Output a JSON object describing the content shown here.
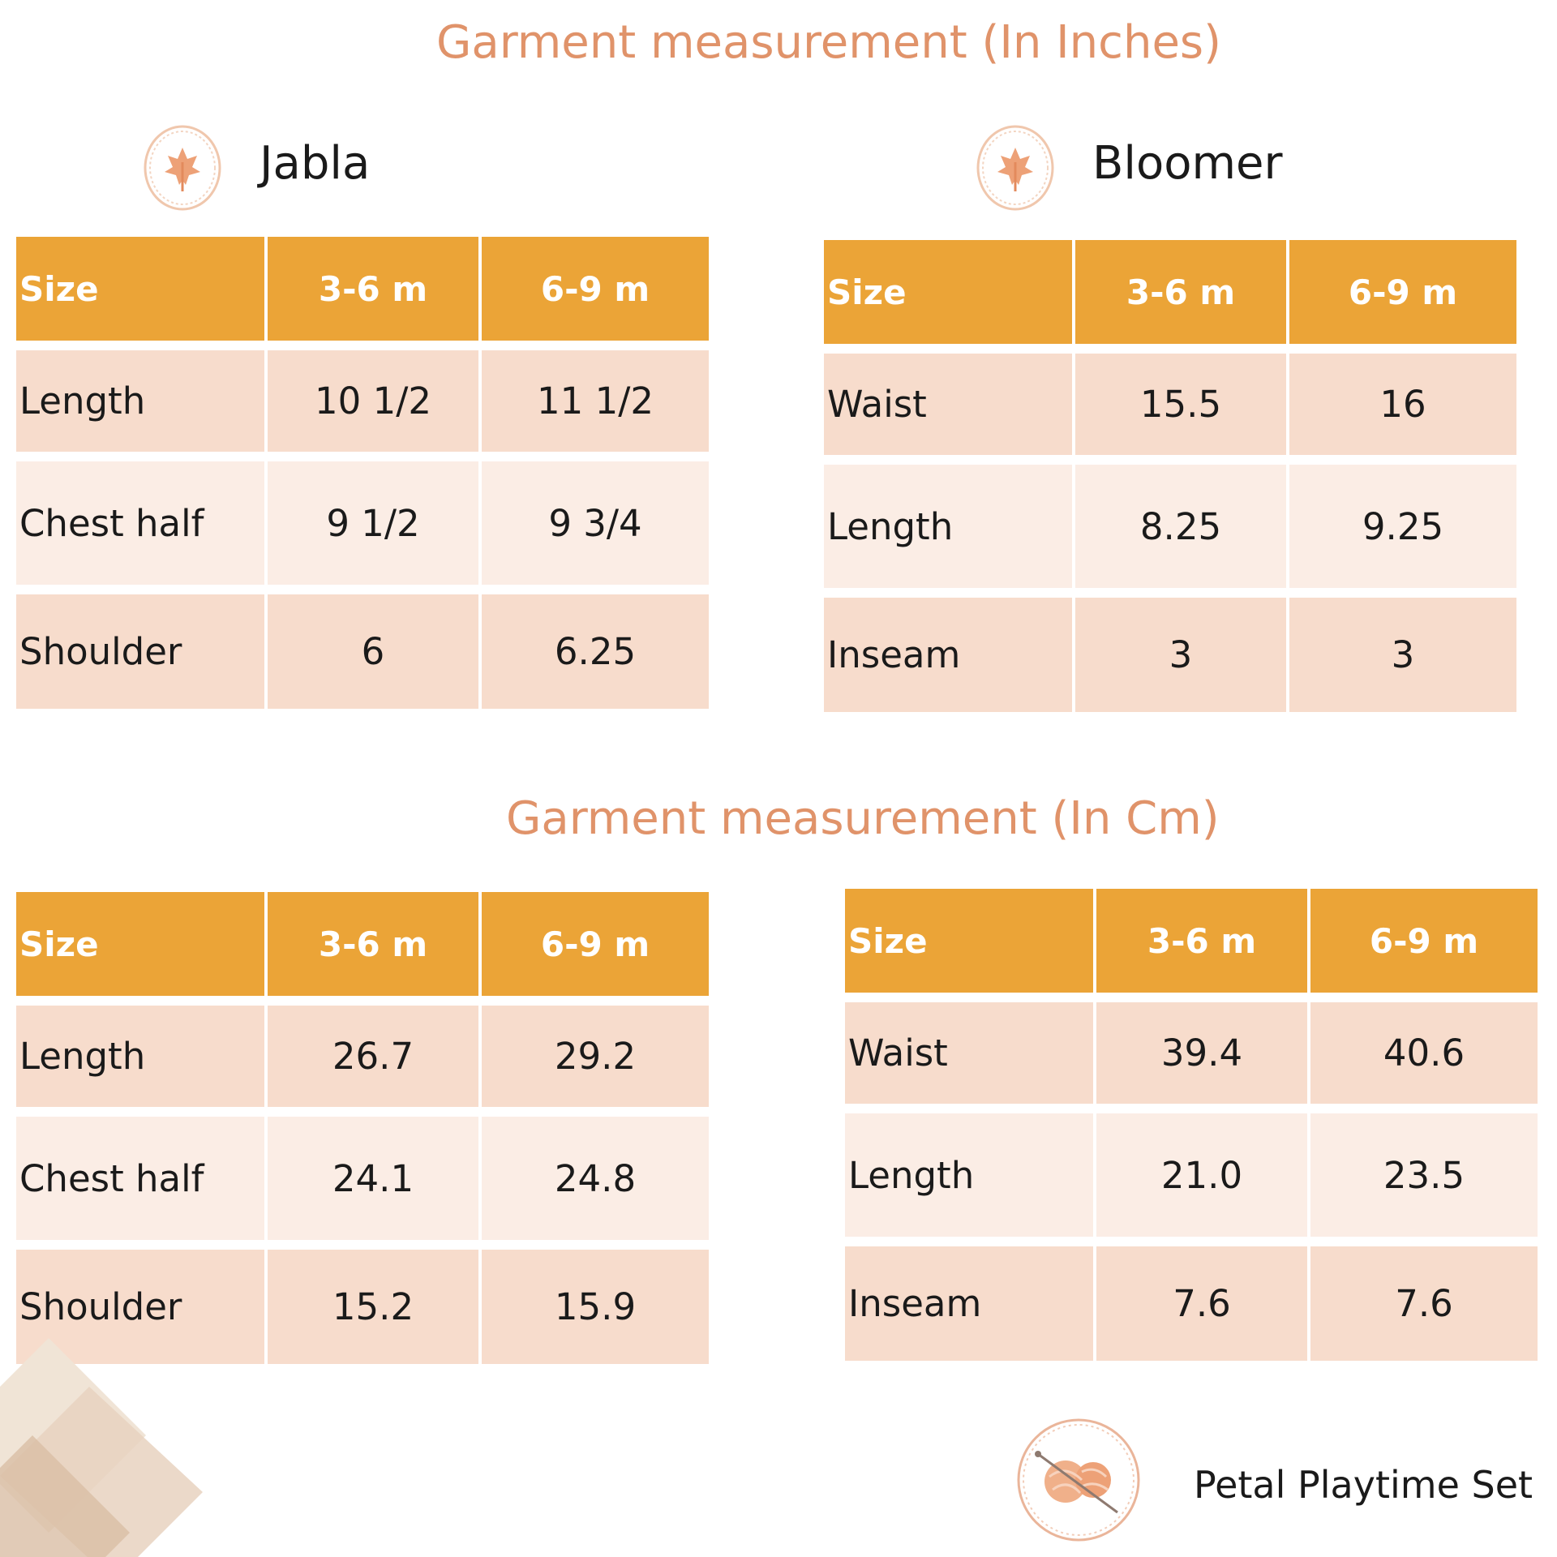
{
  "headings": {
    "inches": "Garment measurement (In Inches)",
    "cm": "Garment measurement (In Cm)"
  },
  "garments": {
    "jabla": "Jabla",
    "bloomer": "Bloomer"
  },
  "columns": [
    "Size",
    "3-6 m",
    "6-9 m"
  ],
  "tables": {
    "jabla_in": [
      [
        "Length",
        "10 1/2",
        "11 1/2"
      ],
      [
        "Chest half",
        "9 1/2",
        "9 3/4"
      ],
      [
        "Shoulder",
        "6",
        "6.25"
      ]
    ],
    "bloomer_in": [
      [
        "Waist",
        "15.5",
        "16"
      ],
      [
        "Length",
        "8.25",
        "9.25"
      ],
      [
        "Inseam",
        "3",
        "3"
      ]
    ],
    "jabla_cm": [
      [
        "Length",
        "26.7",
        "29.2"
      ],
      [
        "Chest half",
        "24.1",
        "24.8"
      ],
      [
        "Shoulder",
        "15.2",
        "15.9"
      ]
    ],
    "bloomer_cm": [
      [
        "Waist",
        "39.4",
        "40.6"
      ],
      [
        "Length",
        "21.0",
        "23.5"
      ],
      [
        "Inseam",
        "7.6",
        "7.6"
      ]
    ]
  },
  "footer": {
    "product_name": "Petal Playtime Set"
  },
  "colors": {
    "heading": "#e0936a",
    "table_header": "#eba437",
    "row_dark": "#f7dccc",
    "row_light": "#fbede5",
    "decor_diamond": "#ecdccb"
  },
  "icons": {
    "garment_badge": "leaf-badge-icon",
    "footer_logo": "yarn-ball-icon"
  }
}
